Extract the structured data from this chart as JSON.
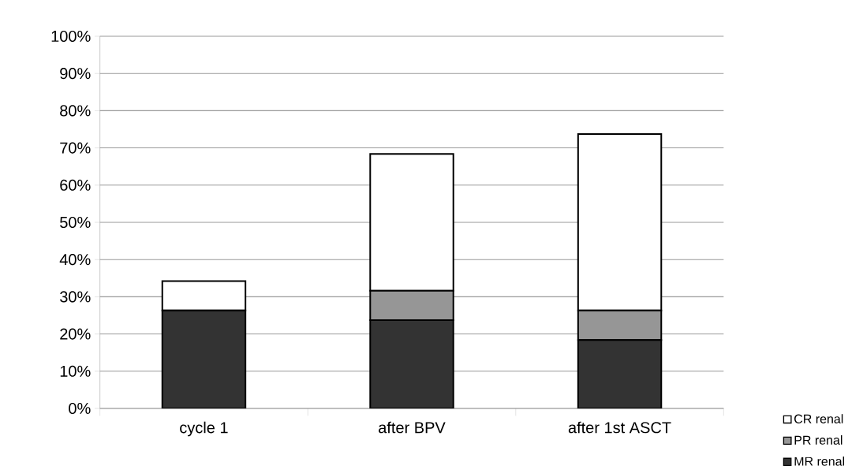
{
  "chart_data": {
    "type": "bar",
    "stacked": true,
    "categories": [
      "cycle 1",
      "after BPV",
      "after 1st ASCT"
    ],
    "series": [
      {
        "name": "MR renal",
        "color": "#333333",
        "values": [
          26.3,
          23.7,
          18.4
        ]
      },
      {
        "name": "PR renal",
        "color": "#969696",
        "values": [
          0,
          7.9,
          7.9
        ]
      },
      {
        "name": "CR renal",
        "color": "#ffffff",
        "values": [
          7.9,
          36.8,
          47.4
        ]
      }
    ],
    "ylim": [
      0,
      100
    ],
    "yticks": [
      {
        "value": 0,
        "label": "0%"
      },
      {
        "value": 10,
        "label": "10%"
      },
      {
        "value": 20,
        "label": "20%"
      },
      {
        "value": 30,
        "label": "30%"
      },
      {
        "value": 40,
        "label": "40%"
      },
      {
        "value": 50,
        "label": "50%"
      },
      {
        "value": 60,
        "label": "60%"
      },
      {
        "value": 70,
        "label": "70%"
      },
      {
        "value": 80,
        "label": "80%"
      },
      {
        "value": 90,
        "label": "90%"
      },
      {
        "value": 100,
        "label": "100%"
      }
    ],
    "grid": "y",
    "legend": "bottom right"
  }
}
